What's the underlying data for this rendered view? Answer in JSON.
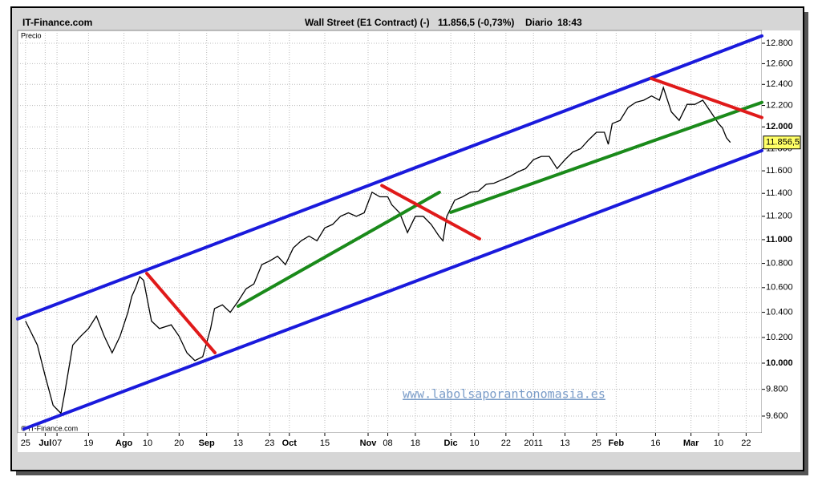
{
  "chart_data": {
    "type": "line",
    "source": "IT-Finance.com",
    "title": "Wall Street (E1 Contract) (-)",
    "last_label": "11.856,5 (-0,73%)",
    "period": "Diario",
    "time": "18:43",
    "y_label": "Precio",
    "copyright": "© IT-Finance.com",
    "watermark": "www.labolsaporantonomasia.es",
    "last_tag": "11.856,5",
    "log_scale": true,
    "grid": true,
    "color": "#000000",
    "x": [
      0,
      3,
      5,
      7,
      9,
      10,
      12,
      14,
      16,
      18,
      20,
      22,
      24,
      26,
      27,
      28,
      29,
      30,
      32,
      34,
      37,
      39,
      41,
      43,
      45,
      47,
      48,
      50,
      52,
      54,
      56,
      58,
      60,
      62,
      64,
      66,
      68,
      70,
      72,
      74,
      76,
      78,
      80,
      82,
      84,
      86,
      88,
      90,
      92,
      93,
      95,
      97,
      99,
      101,
      103,
      105,
      106,
      107,
      109,
      111,
      113,
      115,
      117,
      119,
      121,
      123,
      125,
      127,
      129,
      131,
      133,
      135,
      137,
      139,
      141,
      143,
      145,
      147,
      148,
      149,
      151,
      153,
      155,
      157,
      159,
      161,
      162,
      164,
      166,
      168,
      170,
      172,
      174,
      176,
      177,
      178,
      179
    ],
    "values": [
      10330,
      10140,
      9900,
      9680,
      9620,
      9780,
      10140,
      10210,
      10270,
      10370,
      10210,
      10080,
      10210,
      10400,
      10530,
      10600,
      10690,
      10660,
      10330,
      10270,
      10300,
      10210,
      10080,
      10020,
      10050,
      10270,
      10430,
      10460,
      10400,
      10490,
      10590,
      10630,
      10790,
      10820,
      10860,
      10790,
      10930,
      10990,
      11030,
      10990,
      11100,
      11130,
      11200,
      11230,
      11200,
      11230,
      11410,
      11370,
      11370,
      11300,
      11230,
      11060,
      11200,
      11200,
      11130,
      11030,
      10990,
      11200,
      11340,
      11370,
      11410,
      11420,
      11480,
      11490,
      11520,
      11550,
      11590,
      11620,
      11700,
      11730,
      11730,
      11620,
      11700,
      11770,
      11800,
      11880,
      11950,
      11950,
      11840,
      12030,
      12060,
      12180,
      12230,
      12250,
      12290,
      12250,
      12370,
      12140,
      12060,
      12210,
      12210,
      12250,
      12140,
      12030,
      11990,
      11900,
      11856.5
    ],
    "xlim": [
      -2,
      187
    ],
    "xticks": [
      {
        "value": 0,
        "label": "25"
      },
      {
        "value": 5,
        "label": "Jul"
      },
      {
        "value": 8,
        "label": "07"
      },
      {
        "value": 16,
        "label": "19"
      },
      {
        "value": 25,
        "label": "Ago"
      },
      {
        "value": 31,
        "label": "10"
      },
      {
        "value": 39,
        "label": "20"
      },
      {
        "value": 46,
        "label": "Sep"
      },
      {
        "value": 54,
        "label": "13"
      },
      {
        "value": 62,
        "label": "23"
      },
      {
        "value": 67,
        "label": "Oct"
      },
      {
        "value": 76,
        "label": "15"
      },
      {
        "value": 87,
        "label": "Nov"
      },
      {
        "value": 92,
        "label": "08"
      },
      {
        "value": 99,
        "label": "18"
      },
      {
        "value": 108,
        "label": "Dic"
      },
      {
        "value": 114,
        "label": "10"
      },
      {
        "value": 122,
        "label": "22"
      },
      {
        "value": 129,
        "label": "2011"
      },
      {
        "value": 137,
        "label": "13"
      },
      {
        "value": 145,
        "label": "25"
      },
      {
        "value": 150,
        "label": "Feb"
      },
      {
        "value": 160,
        "label": "16"
      },
      {
        "value": 169,
        "label": "Mar"
      },
      {
        "value": 176,
        "label": "10"
      },
      {
        "value": 183,
        "label": "22"
      }
    ],
    "ylim": [
      9476,
      12927
    ],
    "yticks": [
      {
        "value": 9600,
        "label": "9.600"
      },
      {
        "value": 9800,
        "label": "9.800"
      },
      {
        "value": 10000,
        "label": "10.000"
      },
      {
        "value": 10200,
        "label": "10.200"
      },
      {
        "value": 10400,
        "label": "10.400"
      },
      {
        "value": 10600,
        "label": "10.600"
      },
      {
        "value": 10800,
        "label": "10.800"
      },
      {
        "value": 11000,
        "label": "11.000"
      },
      {
        "value": 11200,
        "label": "11.200"
      },
      {
        "value": 11400,
        "label": "11.400"
      },
      {
        "value": 11600,
        "label": "11.600"
      },
      {
        "value": 11800,
        "label": "11.800"
      },
      {
        "value": 12000,
        "label": "12.000"
      },
      {
        "value": 12200,
        "label": "12.200"
      },
      {
        "value": 12400,
        "label": "12.400"
      },
      {
        "value": 12600,
        "label": "12.600"
      },
      {
        "value": 12800,
        "label": "12.800"
      }
    ],
    "trendlines": [
      {
        "color": "#1a1adc",
        "from": [
          -2,
          10347
        ],
        "to": [
          187,
          12873
        ]
      },
      {
        "color": "#1a1adc",
        "from": [
          -0.4,
          9505
        ],
        "to": [
          187,
          11782
        ]
      },
      {
        "color": "#1a8a1a",
        "from": [
          54,
          10449
        ],
        "to": [
          105.1,
          11409
        ]
      },
      {
        "color": "#1a8a1a",
        "from": [
          108,
          11234
        ],
        "to": [
          187,
          12229
        ]
      },
      {
        "color": "#e01a1a",
        "from": [
          30.8,
          10717
        ],
        "to": [
          48.1,
          10081
        ]
      },
      {
        "color": "#e01a1a",
        "from": [
          90.5,
          11469
        ],
        "to": [
          115.3,
          11007
        ]
      },
      {
        "color": "#e01a1a",
        "from": [
          158.9,
          12457
        ],
        "to": [
          187,
          12087
        ]
      }
    ]
  }
}
